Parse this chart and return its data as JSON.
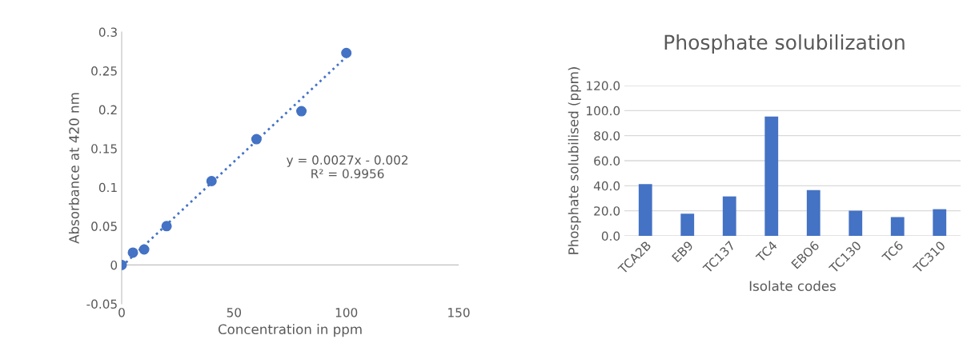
{
  "chart_data": [
    {
      "type": "scatter",
      "xlabel": "Concentration in ppm",
      "ylabel": "Absorbance at 420 nm",
      "series": [
        {
          "type": "scatter",
          "color": "#4472c4",
          "marker": "circle",
          "x": [
            0,
            5,
            10,
            20,
            40,
            60,
            80,
            100
          ],
          "values": [
            0,
            0.016,
            0.02,
            0.05,
            0.108,
            0.162,
            0.198,
            0.273
          ]
        },
        {
          "type": "line",
          "color": "#4472c4",
          "line_style": "dotted",
          "marker": "none",
          "x": [
            0,
            100
          ],
          "values": [
            -0.002,
            0.268
          ]
        }
      ],
      "xlim": [
        0,
        150
      ],
      "xticks": [
        0,
        50,
        100,
        150
      ],
      "ylim": [
        -0.05,
        0.3
      ],
      "yticks": [
        -0.05,
        0,
        0.05,
        0.1,
        0.15,
        0.2,
        0.25,
        0.3
      ],
      "annotations": [
        "y = 0.0027x - 0.002\nR² = 0.9956"
      ],
      "ref_lines": [
        {
          "axis": "y",
          "value": 0,
          "color": "#bfbfbf"
        }
      ],
      "grid": false,
      "legend": false
    },
    {
      "type": "bar",
      "title": "Phosphate solubilization",
      "xlabel": "Isolate codes",
      "ylabel": "Phosphate solubilised (ppm)",
      "categories": [
        "TCA2B",
        "EB9",
        "TC137",
        "TC4",
        "EBO6",
        "TC130",
        "TC6",
        "TC310"
      ],
      "values": [
        41.4,
        17.7,
        31.5,
        95.3,
        36.5,
        20.1,
        15.0,
        21.3
      ],
      "color": "#4472c4",
      "ylim": [
        0,
        120
      ],
      "yticks": [
        {
          "value": 0,
          "label": "0.0"
        },
        {
          "value": 20,
          "label": "20.0"
        },
        {
          "value": 40,
          "label": "40.0"
        },
        {
          "value": 60,
          "label": "60.0"
        },
        {
          "value": 80,
          "label": "80.0"
        },
        {
          "value": 100,
          "label": "100.0"
        },
        {
          "value": 120,
          "label": "120.0"
        }
      ],
      "grid": "y",
      "legend": false
    }
  ]
}
